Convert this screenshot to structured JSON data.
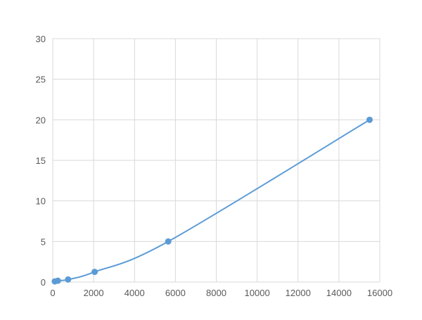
{
  "chart_data": {
    "type": "scatter",
    "title": "",
    "xlabel": "",
    "ylabel": "",
    "xlim": [
      0,
      16000
    ],
    "ylim": [
      0,
      30
    ],
    "x_ticks": [
      "0",
      "2000",
      "4000",
      "6000",
      "8000",
      "10000",
      "12000",
      "14000",
      "16000"
    ],
    "y_ticks": [
      "0",
      "5",
      "10",
      "15",
      "20",
      "25",
      "30"
    ],
    "grid": true,
    "legend": "none",
    "smooth_line": true,
    "color": "#5b9bd5",
    "series": [
      {
        "x": [
          100,
          250,
          750,
          2050,
          5650,
          15500
        ],
        "y": [
          0.08,
          0.16,
          0.31,
          1.25,
          5,
          20
        ]
      }
    ]
  }
}
